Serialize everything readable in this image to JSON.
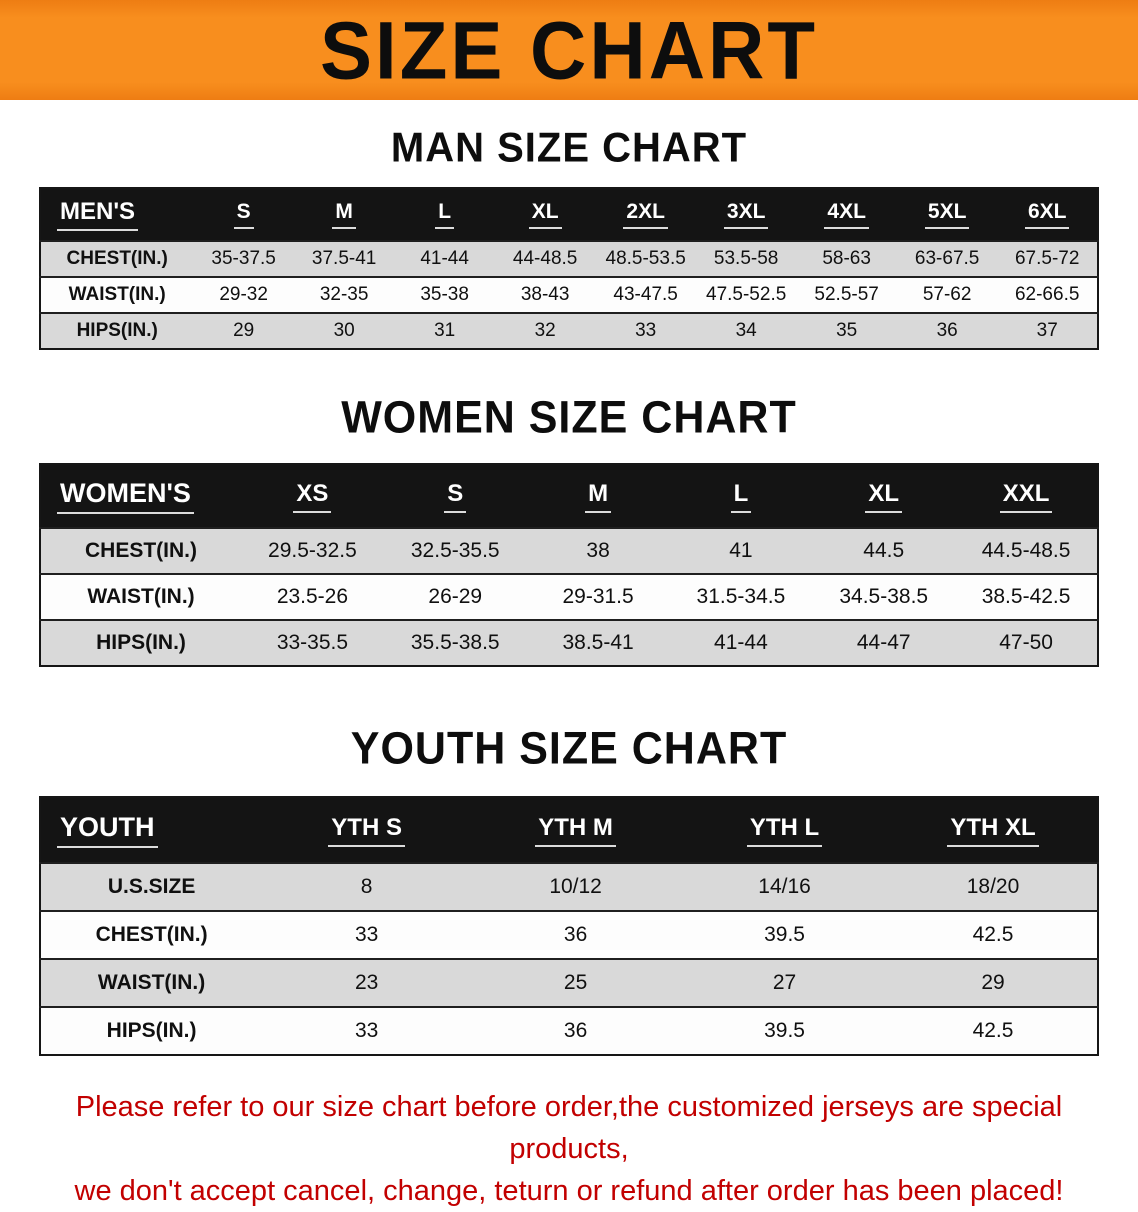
{
  "banner": {
    "title": "SIZE CHART"
  },
  "colors": {
    "banner_bg": "#f78e1e",
    "table_header_bg": "#141414",
    "row_stripe": "#d9d9d9",
    "note_text": "#c20000"
  },
  "sections": {
    "men": {
      "heading": "MAN SIZE CHART",
      "table": {
        "header": [
          "MEN'S",
          "S",
          "M",
          "L",
          "XL",
          "2XL",
          "3XL",
          "4XL",
          "5XL",
          "6XL"
        ],
        "rows": [
          [
            "CHEST(IN.)",
            "35-37.5",
            "37.5-41",
            "41-44",
            "44-48.5",
            "48.5-53.5",
            "53.5-58",
            "58-63",
            "63-67.5",
            "67.5-72"
          ],
          [
            "WAIST(IN.)",
            "29-32",
            "32-35",
            "35-38",
            "38-43",
            "43-47.5",
            "47.5-52.5",
            "52.5-57",
            "57-62",
            "62-66.5"
          ],
          [
            "HIPS(IN.)",
            "29",
            "30",
            "31",
            "32",
            "33",
            "34",
            "35",
            "36",
            "37"
          ]
        ]
      }
    },
    "women": {
      "heading": "WOMEN SIZE CHART",
      "table": {
        "header": [
          "WOMEN'S",
          "XS",
          "S",
          "M",
          "L",
          "XL",
          "XXL"
        ],
        "rows": [
          [
            "CHEST(IN.)",
            "29.5-32.5",
            "32.5-35.5",
            "38",
            "41",
            "44.5",
            "44.5-48.5"
          ],
          [
            "WAIST(IN.)",
            "23.5-26",
            "26-29",
            "29-31.5",
            "31.5-34.5",
            "34.5-38.5",
            "38.5-42.5"
          ],
          [
            "HIPS(IN.)",
            "33-35.5",
            "35.5-38.5",
            "38.5-41",
            "41-44",
            "44-47",
            "47-50"
          ]
        ]
      }
    },
    "youth": {
      "heading": "YOUTH SIZE CHART",
      "table": {
        "header": [
          "YOUTH",
          "YTH S",
          "YTH M",
          "YTH L",
          "YTH XL"
        ],
        "rows": [
          [
            "U.S.SIZE",
            "8",
            "10/12",
            "14/16",
            "18/20"
          ],
          [
            "CHEST(IN.)",
            "33",
            "36",
            "39.5",
            "42.5"
          ],
          [
            "WAIST(IN.)",
            "23",
            "25",
            "27",
            "29"
          ],
          [
            "HIPS(IN.)",
            "33",
            "36",
            "39.5",
            "42.5"
          ]
        ]
      }
    }
  },
  "note": {
    "line1": "Please refer to our size chart before order,the customized jerseys are special products,",
    "line2": "we don't accept cancel, change, teturn or refund after order has been placed!"
  }
}
